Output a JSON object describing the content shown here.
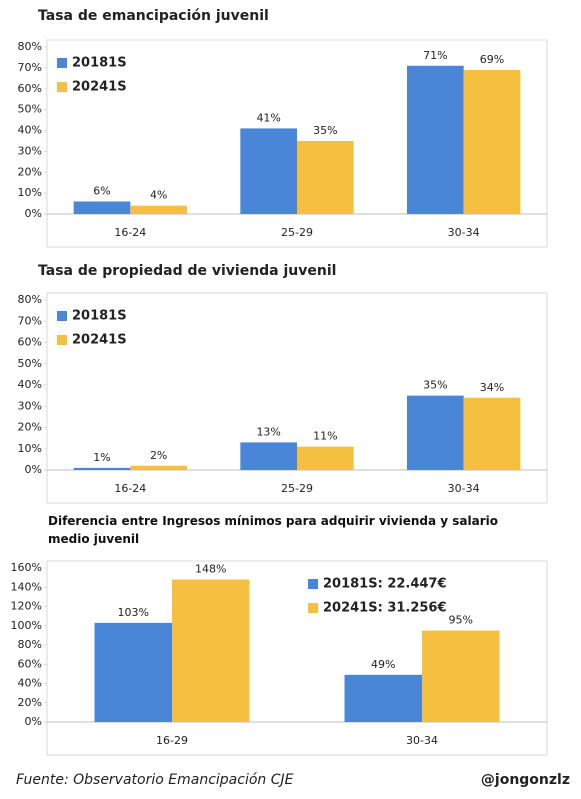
{
  "chart_data": [
    {
      "type": "bar",
      "title": "Tasa de emancipación juvenil",
      "categories": [
        "16-24",
        "25-29",
        "30-34"
      ],
      "series": [
        {
          "name": "20181S",
          "color": "#4a86d8",
          "values": [
            6,
            41,
            71
          ],
          "value_labels": [
            "6%",
            "41%",
            "71%"
          ]
        },
        {
          "name": "20241S",
          "color": "#f5c040",
          "values": [
            4,
            35,
            69
          ],
          "value_labels": [
            "4%",
            "35%",
            "69%"
          ]
        }
      ],
      "ylim": [
        0,
        80
      ],
      "yticks": [
        {
          "value": 0,
          "label": "0%"
        },
        {
          "value": 10,
          "label": "10%"
        },
        {
          "value": 20,
          "label": "20%"
        },
        {
          "value": 30,
          "label": "30%"
        },
        {
          "value": 40,
          "label": "40%"
        },
        {
          "value": 50,
          "label": "50%"
        },
        {
          "value": 60,
          "label": "60%"
        },
        {
          "value": 70,
          "label": "70%"
        },
        {
          "value": 80,
          "label": "80%"
        }
      ],
      "legend": "upper left"
    },
    {
      "type": "bar",
      "title": "Tasa de propiedad de vivienda juvenil",
      "categories": [
        "16-24",
        "25-29",
        "30-34"
      ],
      "series": [
        {
          "name": "20181S",
          "color": "#4a86d8",
          "values": [
            1,
            13,
            35
          ],
          "value_labels": [
            "1%",
            "13%",
            "35%"
          ]
        },
        {
          "name": "20241S",
          "color": "#f5c040",
          "values": [
            2,
            11,
            34
          ],
          "value_labels": [
            "2%",
            "11%",
            "34%"
          ]
        }
      ],
      "ylim": [
        0,
        80
      ],
      "yticks": [
        {
          "value": 0,
          "label": "0%"
        },
        {
          "value": 10,
          "label": "10%"
        },
        {
          "value": 20,
          "label": "20%"
        },
        {
          "value": 30,
          "label": "30%"
        },
        {
          "value": 40,
          "label": "40%"
        },
        {
          "value": 50,
          "label": "50%"
        },
        {
          "value": 60,
          "label": "60%"
        },
        {
          "value": 70,
          "label": "70%"
        },
        {
          "value": 80,
          "label": "80%"
        }
      ],
      "legend": "upper left"
    },
    {
      "type": "bar",
      "title": "Diferencia entre Ingresos  mínimos para adquirir vivienda y salario medio juvenil",
      "categories": [
        "16-29",
        "30-34"
      ],
      "series": [
        {
          "name": "20181S: 22.447€",
          "color": "#4a86d8",
          "values": [
            103,
            49
          ],
          "value_labels": [
            "103%",
            "49%"
          ]
        },
        {
          "name": "20241S: 31.256€",
          "color": "#f5c040",
          "values": [
            148,
            95
          ],
          "value_labels": [
            "148%",
            "95%"
          ]
        }
      ],
      "ylim": [
        0,
        160
      ],
      "yticks": [
        {
          "value": 0,
          "label": "0%"
        },
        {
          "value": 20,
          "label": "20%"
        },
        {
          "value": 40,
          "label": "40%"
        },
        {
          "value": 60,
          "label": "60%"
        },
        {
          "value": 80,
          "label": "80%"
        },
        {
          "value": 100,
          "label": "100%"
        },
        {
          "value": 120,
          "label": "120%"
        },
        {
          "value": 140,
          "label": "140%"
        },
        {
          "value": 160,
          "label": "160%"
        }
      ],
      "legend": "upper right"
    }
  ],
  "footer": {
    "source": "Fuente: Observatorio Emancipación CJE",
    "handle": "@jongonzlz"
  }
}
